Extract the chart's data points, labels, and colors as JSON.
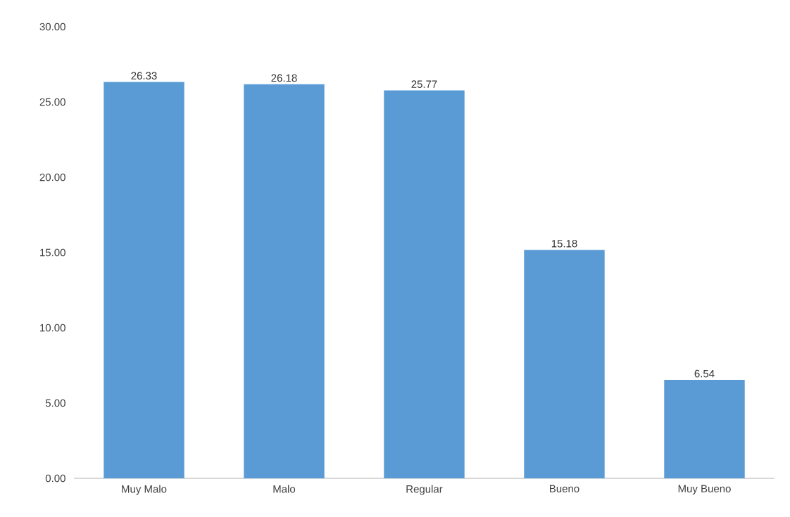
{
  "chart_data": {
    "type": "bar",
    "categories": [
      "Muy Malo",
      "Malo",
      "Regular",
      "Bueno",
      "Muy Bueno"
    ],
    "values": [
      26.33,
      26.18,
      25.77,
      15.18,
      6.54
    ],
    "value_labels": [
      "26.33",
      "26.18",
      "25.77",
      "15.18",
      "6.54"
    ],
    "color": "#5b9bd5",
    "ylim": [
      0,
      30
    ],
    "yticks": [
      {
        "value": 0,
        "label": "0.00"
      },
      {
        "value": 5,
        "label": "5.00"
      },
      {
        "value": 10,
        "label": "10.00"
      },
      {
        "value": 15,
        "label": "15.00"
      },
      {
        "value": 20,
        "label": "20.00"
      },
      {
        "value": 25,
        "label": "25.00"
      },
      {
        "value": 30,
        "label": "30.00"
      }
    ],
    "grid": false
  }
}
